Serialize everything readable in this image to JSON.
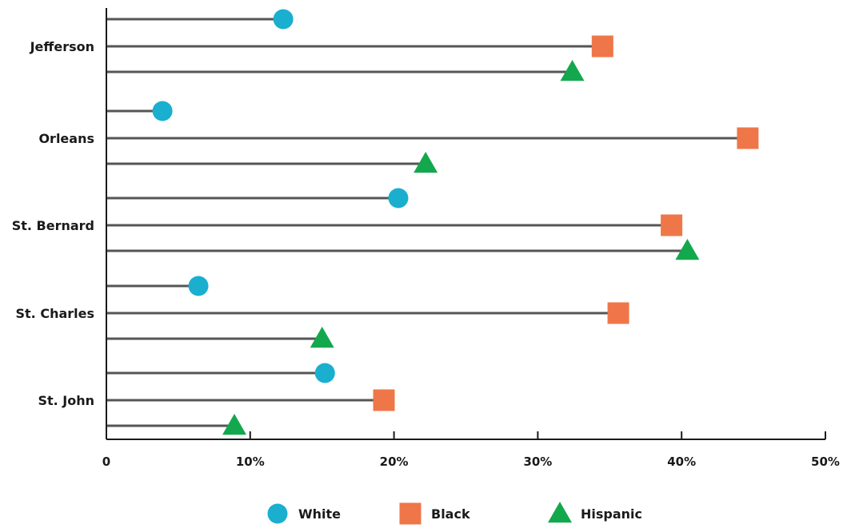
{
  "chart_data": {
    "type": "lollipop",
    "categories": [
      "Jefferson",
      "Orleans",
      "St. Bernard",
      "St. Charles",
      "St. John"
    ],
    "series": [
      {
        "name": "White",
        "marker": "circle",
        "color": "#1AAFCF",
        "values": [
          12.3,
          3.9,
          20.3,
          6.4,
          15.2
        ]
      },
      {
        "name": "Black",
        "marker": "square",
        "color": "#EF7648",
        "values": [
          34.5,
          44.6,
          39.3,
          35.6,
          19.3
        ]
      },
      {
        "name": "Hispanic",
        "marker": "triangle",
        "color": "#13A84D",
        "values": [
          32.4,
          22.2,
          40.4,
          15.0,
          8.9
        ]
      }
    ],
    "x_ticks": [
      "0",
      "10%",
      "20%",
      "30%",
      "40%",
      "50%"
    ],
    "xlim": [
      0,
      50
    ],
    "xlabel": "",
    "ylabel": "",
    "title": "",
    "legend_position": "bottom-center",
    "grid": false
  },
  "colors": {
    "stem": "#555555",
    "axis": "#1a1a1a"
  }
}
